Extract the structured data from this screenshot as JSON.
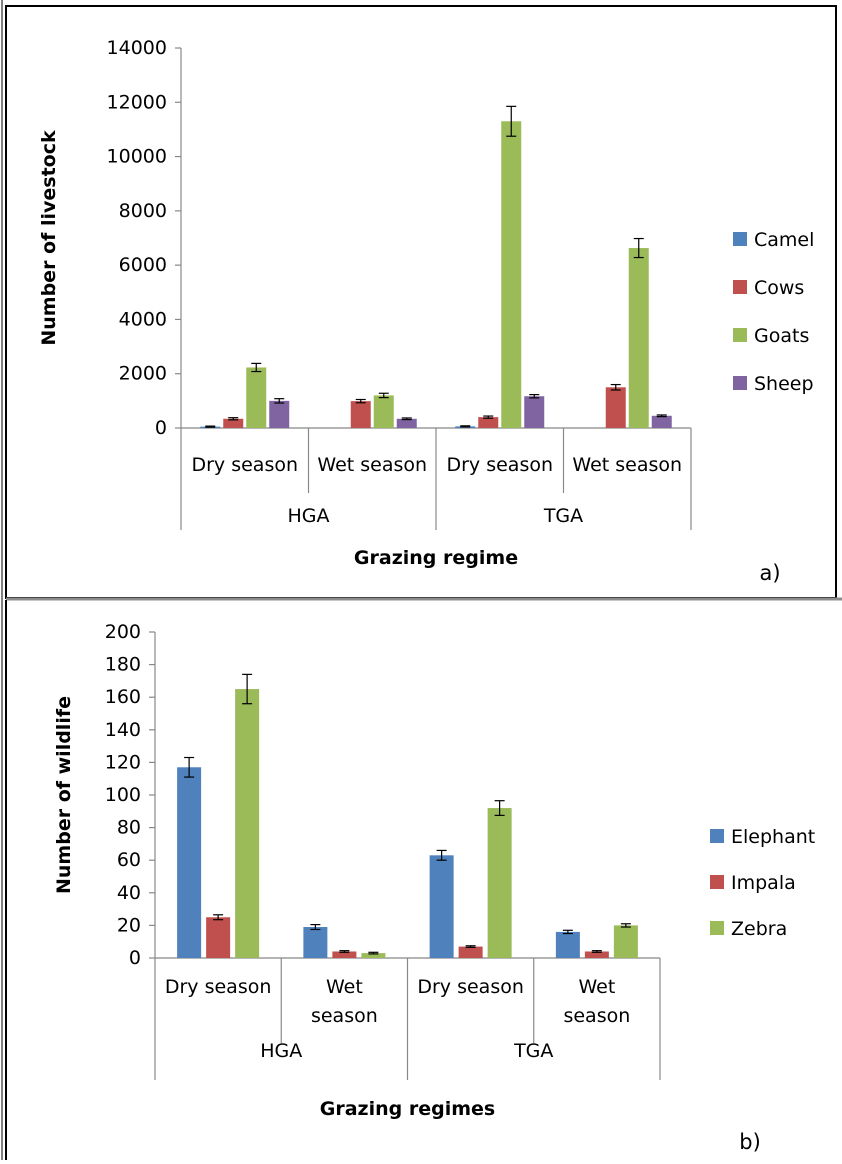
{
  "chart_data": [
    {
      "type": "bar",
      "panel_label": "a)",
      "xlabel": "Grazing regime",
      "ylabel": "Number of livestock",
      "ylim": [
        0,
        14000
      ],
      "yticks": [
        0,
        2000,
        4000,
        6000,
        8000,
        10000,
        12000,
        14000
      ],
      "grid": false,
      "legend_position": "right",
      "groups": [
        {
          "label": "HGA",
          "categories": [
            "Dry season",
            "Wet season"
          ]
        },
        {
          "label": "TGA",
          "categories": [
            "Dry season",
            "Wet season"
          ]
        }
      ],
      "series": [
        {
          "name": "Camel",
          "color": "#4f81bd",
          "values": [
            50,
            0,
            60,
            0
          ],
          "errors": [
            20,
            0,
            20,
            0
          ]
        },
        {
          "name": "Cows",
          "color": "#c0504d",
          "values": [
            340,
            990,
            400,
            1500
          ],
          "errors": [
            40,
            60,
            40,
            100
          ]
        },
        {
          "name": "Goats",
          "color": "#9bbb59",
          "values": [
            2230,
            1200,
            11300,
            6630
          ],
          "errors": [
            150,
            80,
            550,
            350
          ]
        },
        {
          "name": "Sheep",
          "color": "#8064a2",
          "values": [
            1000,
            340,
            1170,
            450
          ],
          "errors": [
            80,
            30,
            60,
            30
          ]
        }
      ]
    },
    {
      "type": "bar",
      "panel_label": "b)",
      "xlabel": "Grazing regimes",
      "ylabel": "Number of wildlife",
      "ylim": [
        0,
        200
      ],
      "yticks": [
        0,
        20,
        40,
        60,
        80,
        100,
        120,
        140,
        160,
        180,
        200
      ],
      "grid": false,
      "legend_position": "right",
      "groups": [
        {
          "label": "HGA",
          "categories": [
            "Dry season",
            "Wet season"
          ]
        },
        {
          "label": "TGA",
          "categories": [
            "Dry season",
            "Wet season"
          ]
        }
      ],
      "series": [
        {
          "name": "Elephant",
          "color": "#4f81bd",
          "values": [
            117,
            19,
            63,
            16
          ],
          "errors": [
            6,
            1.5,
            3,
            1
          ]
        },
        {
          "name": "Impala",
          "color": "#c0504d",
          "values": [
            25,
            4,
            7,
            4
          ],
          "errors": [
            1.5,
            0.5,
            0.5,
            0.5
          ]
        },
        {
          "name": "Zebra",
          "color": "#9bbb59",
          "values": [
            165,
            3,
            92,
            20
          ],
          "errors": [
            9,
            0.5,
            4.5,
            1
          ]
        }
      ]
    }
  ]
}
